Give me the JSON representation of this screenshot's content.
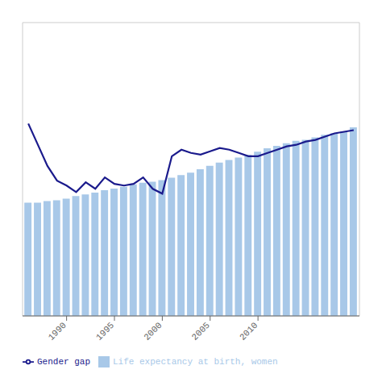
{
  "chart_data": {
    "type": "bar",
    "x": [
      1986,
      1987,
      1988,
      1989,
      1990,
      1991,
      1992,
      1993,
      1994,
      1995,
      1996,
      1997,
      1998,
      1999,
      2000,
      2001,
      2002,
      2003,
      2004,
      2005,
      2006,
      2007,
      2008,
      2009,
      2010,
      2011,
      2012,
      2013,
      2014,
      2015,
      2016,
      2017,
      2018,
      2019,
      2020
    ],
    "series": [
      {
        "name": "Life expectancy at birth, women",
        "type": "bar",
        "color": "#a8c8e8",
        "values": [
          73.5,
          73.5,
          73.7,
          73.8,
          74.0,
          74.3,
          74.5,
          74.7,
          75.0,
          75.2,
          75.4,
          75.7,
          75.9,
          76.0,
          76.2,
          76.5,
          76.8,
          77.1,
          77.5,
          77.9,
          78.3,
          78.6,
          78.9,
          79.2,
          79.6,
          80.0,
          80.3,
          80.6,
          80.9,
          81.0,
          81.3,
          81.6,
          81.8,
          82.0,
          82.5
        ]
      },
      {
        "name": "Gender gap",
        "type": "line",
        "color": "#1a1a8c",
        "axis": "y2",
        "values": [
          7.8,
          6.5,
          5.2,
          4.3,
          4.0,
          3.6,
          4.2,
          3.8,
          4.5,
          4.1,
          4.0,
          4.1,
          4.5,
          3.8,
          3.5,
          5.8,
          6.2,
          6.0,
          5.9,
          6.1,
          6.3,
          6.2,
          6.0,
          5.8,
          5.8,
          6.0,
          6.2,
          6.4,
          6.5,
          6.7,
          6.8,
          7.0,
          7.2,
          7.3,
          7.4
        ]
      }
    ],
    "xlim": [
      1985.4,
      2020.6
    ],
    "xticks": [
      1990,
      1995,
      2000,
      2005,
      2010
    ],
    "ylim": [
      60,
      95
    ],
    "y2lim": [
      -4,
      14
    ],
    "tick_labels": "x",
    "legend": "lower left"
  }
}
